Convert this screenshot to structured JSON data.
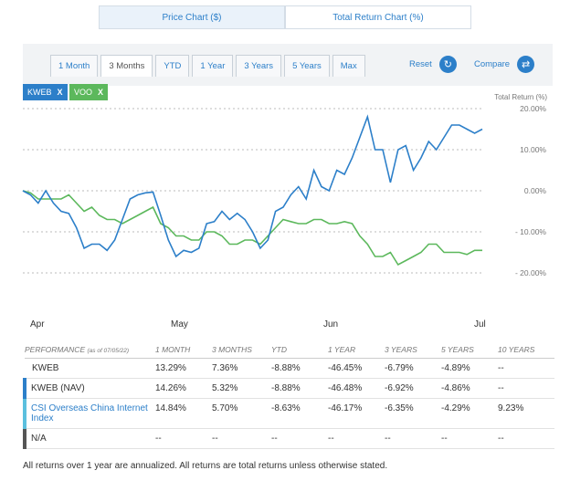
{
  "tabs": [
    "Price Chart ($)",
    "Total Return Chart (%)"
  ],
  "ranges": [
    "1 Month",
    "3 Months",
    "YTD",
    "1 Year",
    "3 Years",
    "5 Years",
    "Max"
  ],
  "active_range": "3 Months",
  "controls": {
    "reset": "Reset",
    "compare": "Compare",
    "reset_icon": "refresh-icon",
    "compare_icon": "swap-icon"
  },
  "tags": [
    {
      "label": "KWEB",
      "close": "X",
      "color": "#2c7fc9"
    },
    {
      "label": "VOO",
      "close": "X",
      "color": "#5cb85c"
    }
  ],
  "chart_data": {
    "type": "line",
    "ylabel": "Total Return (%)",
    "yticks": [
      "20.00%",
      "10.00%",
      "0.00%",
      "- 10.00%",
      "- 20.00%"
    ],
    "ylim": [
      -20,
      20
    ],
    "x_labels": [
      "Apr",
      "May",
      "Jun",
      "Jul"
    ],
    "grid": true,
    "series": [
      {
        "name": "KWEB",
        "color": "#2c7fc9",
        "values": [
          0,
          -1,
          -3,
          0,
          -3,
          -5,
          -5.5,
          -9,
          -14,
          -13,
          -13,
          -14.5,
          -12,
          -7,
          -2,
          -1,
          -0.5,
          -0.3,
          -6,
          -12,
          -16,
          -14.5,
          -15,
          -14,
          -8,
          -7.5,
          -5,
          -7,
          -5.5,
          -7,
          -10,
          -14,
          -12,
          -5,
          -4,
          -1,
          1,
          -2,
          5,
          1,
          0,
          5,
          4,
          8,
          13,
          18,
          10,
          10,
          2,
          10,
          11,
          5,
          8,
          12,
          10,
          13,
          16,
          16,
          15,
          14,
          15
        ]
      },
      {
        "name": "VOO",
        "color": "#5cb85c",
        "values": [
          0,
          -0.5,
          -2,
          -2,
          -2,
          -2,
          -1,
          -3,
          -5,
          -4,
          -6,
          -7,
          -7,
          -8,
          -7,
          -6,
          -5,
          -4,
          -8,
          -9,
          -11,
          -11,
          -12,
          -12,
          -10,
          -10,
          -11,
          -13,
          -13,
          -12,
          -12,
          -13,
          -11,
          -9,
          -7,
          -7.5,
          -8,
          -8,
          -7,
          -7,
          -8,
          -8,
          -7.5,
          -8,
          -11,
          -13,
          -16,
          -16,
          -15,
          -18,
          -17,
          -16,
          -15,
          -13,
          -13,
          -15,
          -15,
          -15,
          -15.5,
          -14.5,
          -14.5
        ]
      }
    ]
  },
  "performance": {
    "header": [
      "PERFORMANCE",
      "(as of 07/05/22)",
      "1 MONTH",
      "3 MONTHS",
      "YTD",
      "1 YEAR",
      "3 YEARS",
      "5 YEARS",
      "10 YEARS"
    ],
    "rows": [
      {
        "name": "KWEB",
        "bar": "",
        "values": [
          "13.29%",
          "7.36%",
          "-8.88%",
          "-46.45%",
          "-6.79%",
          "-4.89%",
          "--"
        ]
      },
      {
        "name": "KWEB (NAV)",
        "bar": "#2c7fc9",
        "values": [
          "14.26%",
          "5.32%",
          "-8.88%",
          "-46.48%",
          "-6.92%",
          "-4.86%",
          "--"
        ]
      },
      {
        "name": "CSI Overseas China Internet Index",
        "bar": "#5bc0de",
        "values": [
          "14.84%",
          "5.70%",
          "-8.63%",
          "-46.17%",
          "-6.35%",
          "-4.29%",
          "9.23%"
        ]
      },
      {
        "name": "N/A",
        "bar": "#555555",
        "values": [
          "--",
          "--",
          "--",
          "--",
          "--",
          "--",
          "--"
        ]
      }
    ]
  },
  "footnote": "All returns over 1 year are annualized. All returns are total returns unless otherwise stated."
}
